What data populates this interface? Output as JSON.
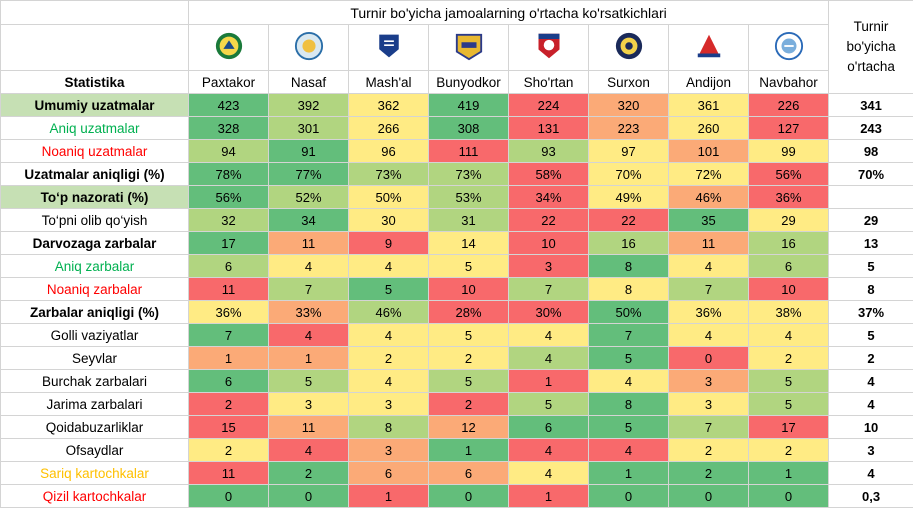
{
  "title": "Turnir bo'yicha jamoalarning o'rtacha ko'rsatkichlari",
  "stat_header": "Statistika",
  "avg_header": [
    "Turnir",
    "bo'yicha",
    "o'rtacha"
  ],
  "teams": [
    "Paxtakor",
    "Nasaf",
    "Mash'al",
    "Bunyodkor",
    "Sho'rtan",
    "Surxon",
    "Andijon",
    "Navbahor"
  ],
  "team_logos": [
    "paxtakor-logo-icon",
    "nasaf-logo-icon",
    "mashal-logo-icon",
    "bunyodkor-logo-icon",
    "shortan-logo-icon",
    "surxon-logo-icon",
    "andijon-logo-icon",
    "navbahor-logo-icon"
  ],
  "colors": {
    "red": "#f8696b",
    "orange": "#fbaa77",
    "yellow": "#ffeb84",
    "lightgreen": "#b1d580",
    "green": "#63be7b",
    "label_green": "#00b050",
    "label_red": "#ff0000",
    "label_orange": "#ffc000",
    "label_highlight": "#c6e0b4"
  },
  "rows": [
    {
      "label": "Umumiy uzatmalar",
      "style": "hl",
      "values": [
        "423",
        "392",
        "362",
        "419",
        "224",
        "320",
        "361",
        "226"
      ],
      "colors": [
        "green",
        "lightgreen",
        "yellow",
        "green",
        "red",
        "orange",
        "yellow",
        "red"
      ],
      "avg": "341"
    },
    {
      "label": "Aniq uzatmalar",
      "style": "green",
      "values": [
        "328",
        "301",
        "266",
        "308",
        "131",
        "223",
        "260",
        "127"
      ],
      "colors": [
        "green",
        "lightgreen",
        "yellow",
        "green",
        "red",
        "orange",
        "yellow",
        "red"
      ],
      "avg": "243"
    },
    {
      "label": "Noaniq uzatmalar",
      "style": "red",
      "values": [
        "94",
        "91",
        "96",
        "111",
        "93",
        "97",
        "101",
        "99"
      ],
      "colors": [
        "lightgreen",
        "green",
        "yellow",
        "red",
        "lightgreen",
        "yellow",
        "orange",
        "yellow"
      ],
      "avg": "98"
    },
    {
      "label": "Uzatmalar aniqligi (%)",
      "style": "bold",
      "values": [
        "78%",
        "77%",
        "73%",
        "73%",
        "58%",
        "70%",
        "72%",
        "56%"
      ],
      "colors": [
        "green",
        "green",
        "lightgreen",
        "lightgreen",
        "red",
        "yellow",
        "yellow",
        "red"
      ],
      "avg": "70%"
    },
    {
      "label": "To‘p nazorati (%)",
      "style": "hl",
      "values": [
        "56%",
        "52%",
        "50%",
        "53%",
        "34%",
        "49%",
        "46%",
        "36%"
      ],
      "colors": [
        "green",
        "lightgreen",
        "yellow",
        "lightgreen",
        "red",
        "yellow",
        "orange",
        "red"
      ],
      "avg": ""
    },
    {
      "label": "To‘pni olib qo‘yish",
      "style": "plain",
      "values": [
        "32",
        "34",
        "30",
        "31",
        "22",
        "22",
        "35",
        "29"
      ],
      "colors": [
        "lightgreen",
        "green",
        "yellow",
        "lightgreen",
        "red",
        "red",
        "green",
        "yellow"
      ],
      "avg": "29"
    },
    {
      "label": "Darvozaga zarbalar",
      "style": "bold",
      "values": [
        "17",
        "11",
        "9",
        "14",
        "10",
        "16",
        "11",
        "16"
      ],
      "colors": [
        "green",
        "orange",
        "red",
        "yellow",
        "red",
        "lightgreen",
        "orange",
        "lightgreen"
      ],
      "avg": "13"
    },
    {
      "label": "Aniq zarbalar",
      "style": "green",
      "values": [
        "6",
        "4",
        "4",
        "5",
        "3",
        "8",
        "4",
        "6"
      ],
      "colors": [
        "lightgreen",
        "yellow",
        "yellow",
        "yellow",
        "red",
        "green",
        "yellow",
        "lightgreen"
      ],
      "avg": "5"
    },
    {
      "label": "Noaniq zarbalar",
      "style": "red",
      "values": [
        "11",
        "7",
        "5",
        "10",
        "7",
        "8",
        "7",
        "10"
      ],
      "colors": [
        "red",
        "lightgreen",
        "green",
        "red",
        "lightgreen",
        "yellow",
        "lightgreen",
        "red"
      ],
      "avg": "8"
    },
    {
      "label": "Zarbalar aniqligi (%)",
      "style": "bold",
      "values": [
        "36%",
        "33%",
        "46%",
        "28%",
        "30%",
        "50%",
        "36%",
        "38%"
      ],
      "colors": [
        "yellow",
        "orange",
        "lightgreen",
        "red",
        "red",
        "green",
        "yellow",
        "yellow"
      ],
      "avg": "37%"
    },
    {
      "label": "Golli vaziyatlar",
      "style": "plain",
      "values": [
        "7",
        "4",
        "4",
        "5",
        "4",
        "7",
        "4",
        "4"
      ],
      "colors": [
        "green",
        "red",
        "yellow",
        "yellow",
        "yellow",
        "green",
        "yellow",
        "yellow"
      ],
      "avg": "5"
    },
    {
      "label": "Seyvlar",
      "style": "plain",
      "values": [
        "1",
        "1",
        "2",
        "2",
        "4",
        "5",
        "0",
        "2"
      ],
      "colors": [
        "orange",
        "orange",
        "yellow",
        "yellow",
        "lightgreen",
        "green",
        "red",
        "yellow"
      ],
      "avg": "2"
    },
    {
      "label": "Burchak zarbalari",
      "style": "plain",
      "values": [
        "6",
        "5",
        "4",
        "5",
        "1",
        "4",
        "3",
        "5"
      ],
      "colors": [
        "green",
        "lightgreen",
        "yellow",
        "lightgreen",
        "red",
        "yellow",
        "orange",
        "lightgreen"
      ],
      "avg": "4"
    },
    {
      "label": "Jarima zarbalari",
      "style": "plain",
      "values": [
        "2",
        "3",
        "3",
        "2",
        "5",
        "8",
        "3",
        "5"
      ],
      "colors": [
        "red",
        "yellow",
        "yellow",
        "red",
        "lightgreen",
        "green",
        "yellow",
        "lightgreen"
      ],
      "avg": "4"
    },
    {
      "label": "Qoidabuzarliklar",
      "style": "plain",
      "values": [
        "15",
        "11",
        "8",
        "12",
        "6",
        "5",
        "7",
        "17"
      ],
      "colors": [
        "red",
        "orange",
        "lightgreen",
        "orange",
        "green",
        "green",
        "lightgreen",
        "red"
      ],
      "avg": "10"
    },
    {
      "label": "Ofsaydlar",
      "style": "plain",
      "values": [
        "2",
        "4",
        "3",
        "1",
        "4",
        "4",
        "2",
        "2"
      ],
      "colors": [
        "yellow",
        "red",
        "orange",
        "green",
        "red",
        "red",
        "yellow",
        "yellow"
      ],
      "avg": "3"
    },
    {
      "label": "Sariq kartochkalar",
      "style": "orange",
      "values": [
        "11",
        "2",
        "6",
        "6",
        "4",
        "1",
        "2",
        "1"
      ],
      "colors": [
        "red",
        "green",
        "orange",
        "orange",
        "yellow",
        "green",
        "green",
        "green"
      ],
      "avg": "4"
    },
    {
      "label": "Qizil kartochkalar",
      "style": "red",
      "values": [
        "0",
        "0",
        "1",
        "0",
        "1",
        "0",
        "0",
        "0"
      ],
      "colors": [
        "green",
        "green",
        "red",
        "green",
        "red",
        "green",
        "green",
        "green"
      ],
      "avg": "0,3"
    }
  ]
}
